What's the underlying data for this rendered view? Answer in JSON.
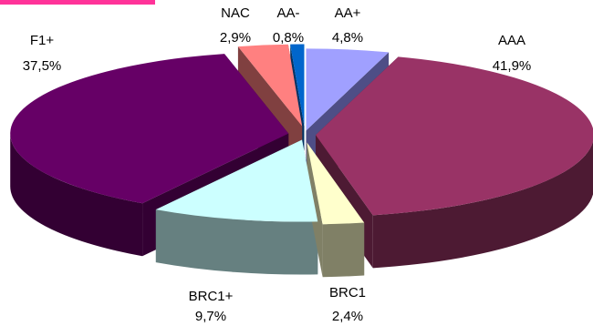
{
  "chart_data": {
    "type": "pie",
    "style": "3d-exploded",
    "title": "",
    "slices": [
      {
        "name": "AA+",
        "value_label": "4,8%",
        "value": 4.8,
        "color": "#a0a0ff",
        "side_color": "#4e4e86"
      },
      {
        "name": "AAA",
        "value_label": "41,9%",
        "value": 41.9,
        "color": "#993366",
        "side_color": "#4d1a33"
      },
      {
        "name": "BRC1",
        "value_label": "2,4%",
        "value": 2.4,
        "color": "#ffffcc",
        "side_color": "#808066"
      },
      {
        "name": "BRC1+",
        "value_label": "9,7%",
        "value": 9.7,
        "color": "#ccffff",
        "side_color": "#668080"
      },
      {
        "name": "F1+",
        "value_label": "37,5%",
        "value": 37.5,
        "color": "#660066",
        "side_color": "#330033"
      },
      {
        "name": "NAC",
        "value_label": "2,9%",
        "value": 2.9,
        "color": "#ff8080",
        "side_color": "#804040"
      },
      {
        "name": "AA-",
        "value_label": "0,8%",
        "value": 0.8,
        "color": "#0066cc",
        "side_color": "#003366"
      }
    ]
  }
}
